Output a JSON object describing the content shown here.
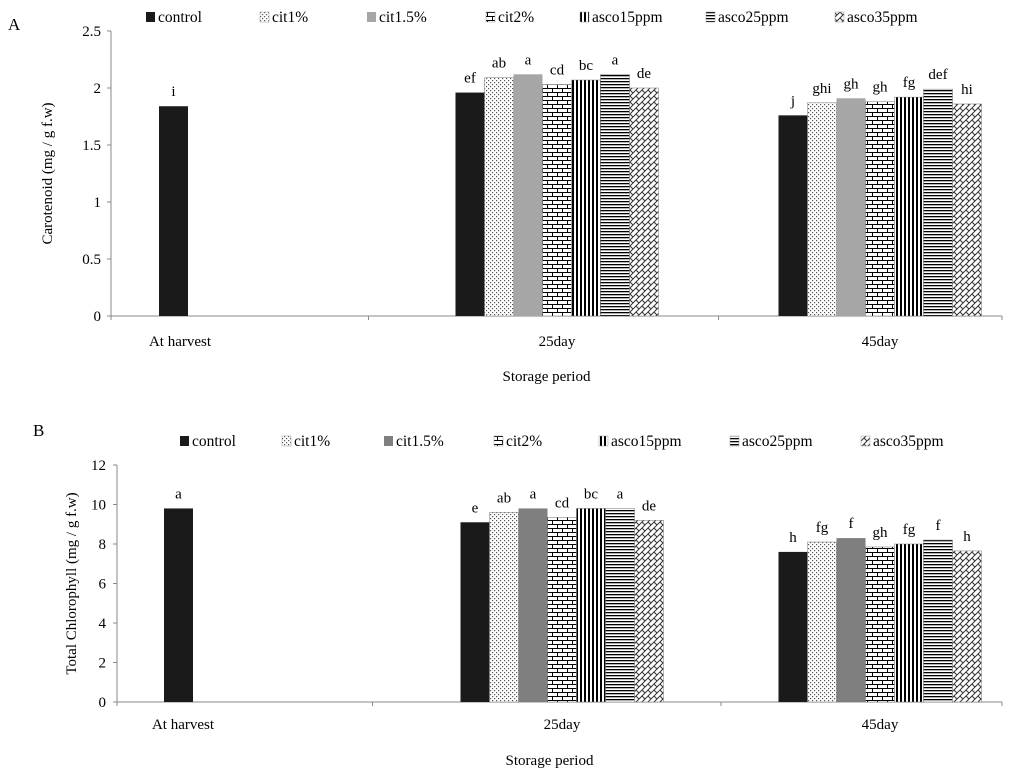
{
  "chart_data": [
    {
      "type": "bar",
      "panel_label": "A",
      "title": "",
      "ylabel": "Carotenoid (mg / g f.w)",
      "xlabel": "Storage period",
      "ylim": [
        0,
        2.5
      ],
      "ytick_step": 0.5,
      "ytick_labels": [
        "0",
        "0.5",
        "1",
        "1.5",
        "2",
        "2.5"
      ],
      "grid": false,
      "legend_position": "top",
      "categories": [
        "At harvest",
        "25day",
        "45day"
      ],
      "series": [
        {
          "name": "control",
          "legend_label": "control",
          "values": [
            1.84,
            1.96,
            1.76
          ],
          "letters": [
            "i",
            "ef",
            "j"
          ]
        },
        {
          "name": "cit1%",
          "legend_label": "cit1%",
          "values": [
            null,
            2.09,
            1.87
          ],
          "letters": [
            "",
            "ab",
            "ghi"
          ]
        },
        {
          "name": "cit1.5%",
          "legend_label": "cit1.5%",
          "values": [
            null,
            2.12,
            1.91
          ],
          "letters": [
            "",
            "a",
            "gh"
          ]
        },
        {
          "name": "cit2%",
          "legend_label": "cit2%",
          "values": [
            null,
            2.03,
            1.88
          ],
          "letters": [
            "",
            "cd",
            "gh"
          ]
        },
        {
          "name": "asco15ppm",
          "legend_label": "asco15ppm",
          "values": [
            null,
            2.07,
            1.92
          ],
          "letters": [
            "",
            "bc",
            "fg"
          ]
        },
        {
          "name": "asco25ppm",
          "legend_label": "asco25ppm",
          "values": [
            null,
            2.12,
            1.99
          ],
          "letters": [
            "",
            "a",
            "def"
          ]
        },
        {
          "name": "asco35ppm",
          "legend_label": "asco35ppm",
          "values": [
            null,
            2.0,
            1.86
          ],
          "letters": [
            "",
            "de",
            "hi"
          ]
        }
      ]
    },
    {
      "type": "bar",
      "panel_label": "B",
      "title": "",
      "ylabel": "Total Chlorophyll (mg / g f.w)",
      "xlabel": "Storage period",
      "ylim": [
        0,
        12
      ],
      "ytick_step": 2,
      "ytick_labels": [
        "0",
        "2",
        "4",
        "6",
        "8",
        "10",
        "12"
      ],
      "grid": false,
      "legend_position": "top",
      "categories": [
        "At harvest",
        "25day",
        "45day"
      ],
      "series": [
        {
          "name": "control",
          "legend_label": "control",
          "values": [
            9.8,
            9.1,
            7.6
          ],
          "letters": [
            "a",
            "e",
            "h"
          ]
        },
        {
          "name": "cit1%",
          "legend_label": "cit1%",
          "values": [
            null,
            9.6,
            8.1
          ],
          "letters": [
            "",
            "ab",
            "fg"
          ]
        },
        {
          "name": "cit1.5%",
          "legend_label": "cit1.5%",
          "values": [
            null,
            9.8,
            8.3
          ],
          "letters": [
            "",
            "a",
            "f"
          ]
        },
        {
          "name": "cit2%",
          "legend_label": "cit2%",
          "values": [
            null,
            9.35,
            7.85
          ],
          "letters": [
            "",
            "cd",
            "gh"
          ]
        },
        {
          "name": "asco15ppm",
          "legend_label": "asco15ppm",
          "values": [
            null,
            9.8,
            8.0
          ],
          "letters": [
            "",
            "bc",
            "fg"
          ]
        },
        {
          "name": "asco25ppm",
          "legend_label": "asco25ppm",
          "values": [
            null,
            9.8,
            8.2
          ],
          "letters": [
            "",
            "a",
            "f"
          ]
        },
        {
          "name": "asco35ppm",
          "legend_label": "asco35ppm",
          "values": [
            null,
            9.2,
            7.65
          ],
          "letters": [
            "",
            "de",
            "h"
          ]
        }
      ]
    }
  ],
  "series_style": {
    "control": {
      "fill": "#1a1a1a",
      "pattern": "solid"
    },
    "cit1%": {
      "fill": "#ffffff",
      "pattern": "dots"
    },
    "cit1.5%": {
      "fill": "#a6a6a6",
      "pattern": "solid"
    },
    "cit2%": {
      "fill": "#ffffff",
      "pattern": "brick"
    },
    "asco15ppm": {
      "fill": "#ffffff",
      "pattern": "vertical"
    },
    "asco25ppm": {
      "fill": "#ffffff",
      "pattern": "horizontal"
    },
    "asco35ppm": {
      "fill": "#ffffff",
      "pattern": "weave"
    }
  },
  "panel_b_overrides": {
    "cit1.5%": {
      "fill": "#7f7f7f"
    }
  }
}
